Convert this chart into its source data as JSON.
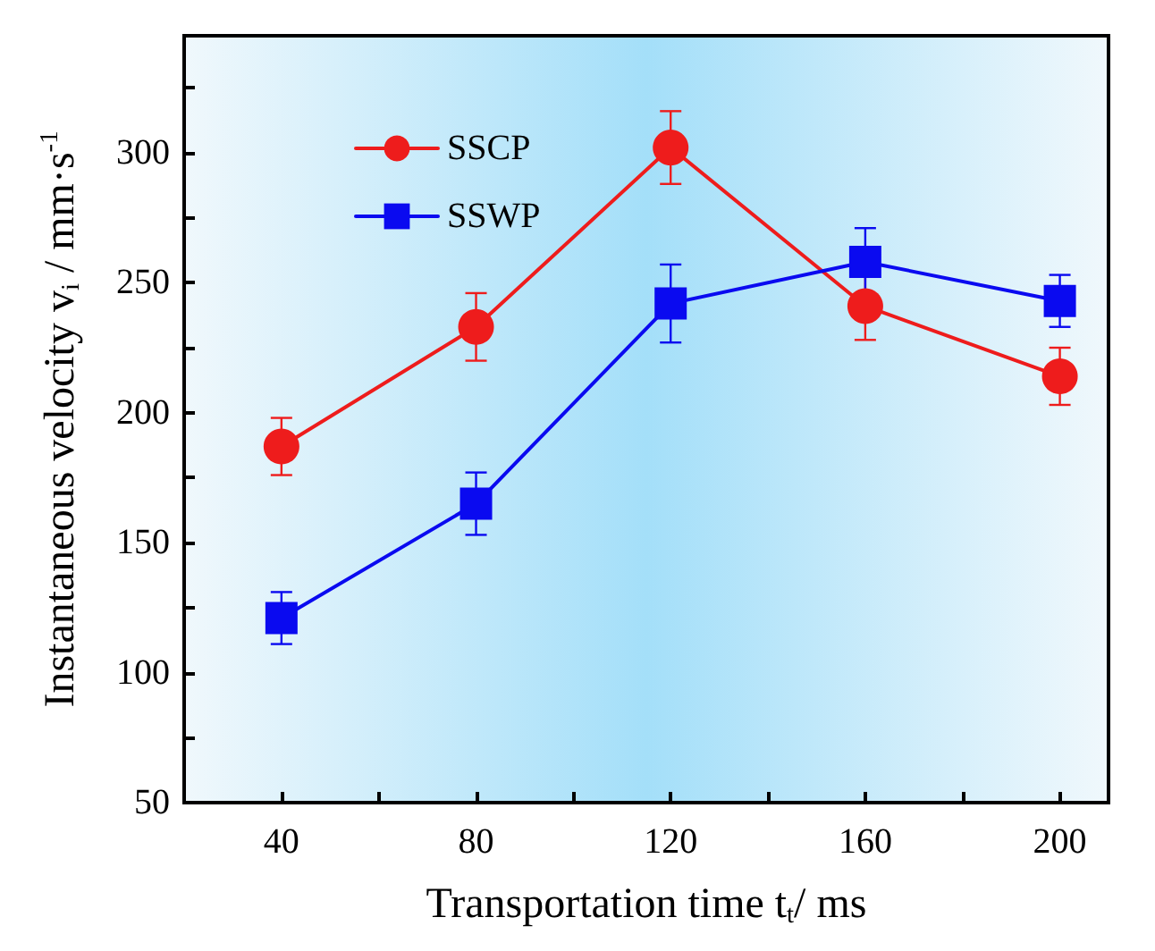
{
  "chart_data": {
    "type": "line",
    "xlabel": "Transportation time t$_{t}$/ ms",
    "ylabel": "Instantaneous velocity v$_{i}$ / mm·s$^{-1}$",
    "x": [
      40,
      80,
      120,
      160,
      200
    ],
    "series": [
      {
        "name": "SSCP",
        "color": "#ee1c1c",
        "marker": "circle",
        "values": [
          187,
          233,
          302,
          241,
          214
        ],
        "errors": [
          11,
          13,
          14,
          13,
          11
        ]
      },
      {
        "name": "SSWP",
        "color": "#0a0af0",
        "marker": "square",
        "values": [
          121,
          165,
          242,
          258,
          243
        ],
        "errors": [
          10,
          12,
          15,
          13,
          10
        ]
      }
    ],
    "xlim": [
      20,
      210
    ],
    "xticks": [
      40,
      {
        "value": 60,
        "label": null
      },
      80,
      {
        "value": 100,
        "label": null
      },
      120,
      {
        "value": 140,
        "label": null
      },
      160,
      {
        "value": 180,
        "label": null
      },
      200
    ],
    "ylim": [
      50,
      345
    ],
    "yticks": [
      50,
      {
        "value": 75,
        "label": null
      },
      100,
      {
        "value": 125,
        "label": null
      },
      150,
      {
        "value": 175,
        "label": null
      },
      200,
      {
        "value": 225,
        "label": null
      },
      250,
      {
        "value": 275,
        "label": null
      },
      300,
      {
        "value": 325,
        "label": null
      }
    ],
    "grid": false,
    "legend": "top left",
    "line_style": "solid"
  }
}
